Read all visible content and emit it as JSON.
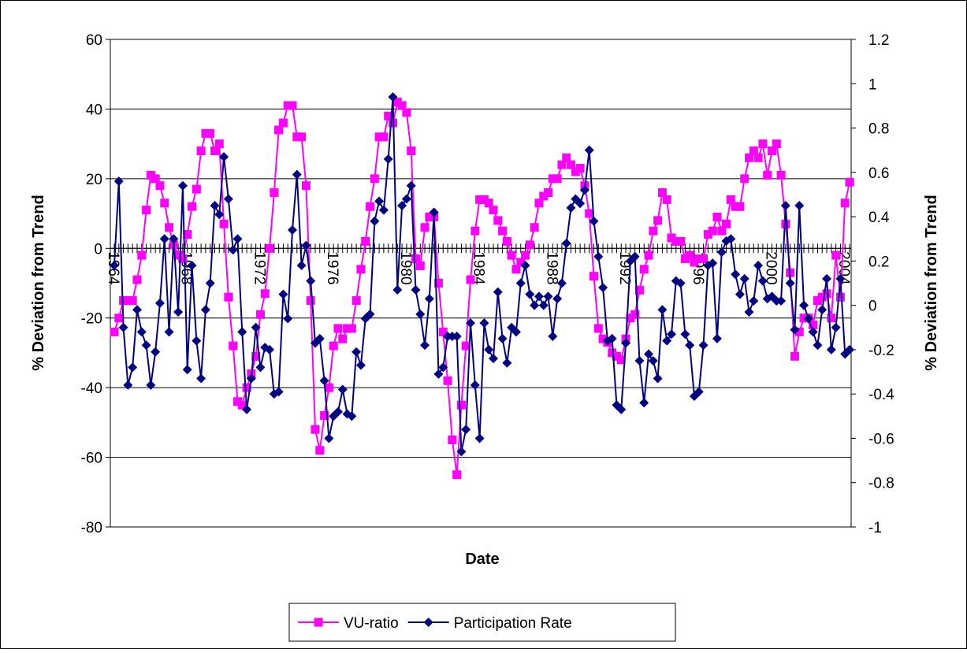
{
  "chart_data": {
    "type": "line",
    "x_label": "Date",
    "y_label": "% Deviation from Trend",
    "y2_label": "% Deviation from Trend",
    "categories": [
      "1964",
      null,
      null,
      null,
      null,
      null,
      null,
      null,
      null,
      null,
      null,
      null,
      null,
      null,
      null,
      null,
      "1968",
      null,
      null,
      null,
      null,
      null,
      null,
      null,
      null,
      null,
      null,
      null,
      null,
      null,
      null,
      null,
      "1972",
      null,
      null,
      null,
      null,
      null,
      null,
      null,
      null,
      null,
      null,
      null,
      null,
      null,
      null,
      null,
      "1976",
      null,
      null,
      null,
      null,
      null,
      null,
      null,
      null,
      null,
      null,
      null,
      null,
      null,
      null,
      null,
      "1980",
      null,
      null,
      null,
      null,
      null,
      null,
      null,
      null,
      null,
      null,
      null,
      null,
      null,
      null,
      null,
      "1984",
      null,
      null,
      null,
      null,
      null,
      null,
      null,
      null,
      null,
      null,
      null,
      null,
      null,
      null,
      null,
      "1988",
      null,
      null,
      null,
      null,
      null,
      null,
      null,
      null,
      null,
      null,
      null,
      null,
      null,
      null,
      null,
      "1992",
      null,
      null,
      null,
      null,
      null,
      null,
      null,
      null,
      null,
      null,
      null,
      null,
      null,
      null,
      null,
      "1996",
      null,
      null,
      null,
      null,
      null,
      null,
      null,
      null,
      null,
      null,
      null,
      null,
      null,
      null,
      null,
      "2000",
      null,
      null,
      null,
      null,
      null,
      null,
      null,
      null,
      null,
      null,
      null,
      null,
      null,
      null,
      null,
      "2004",
      null
    ],
    "series": [
      {
        "name": "VU-ratio",
        "color": "#ff00ff",
        "marker": "square",
        "axis": "y",
        "values": [
          -24,
          -20,
          -15,
          -15,
          -15,
          -9,
          -2,
          11,
          21,
          20,
          18,
          13,
          6,
          1,
          -2,
          -3,
          4,
          12,
          17,
          28,
          33,
          33,
          28,
          30,
          7,
          -14,
          -28,
          -44,
          -45,
          -40,
          -36,
          -31,
          -19,
          -13,
          0,
          16,
          34,
          36,
          41,
          41,
          32,
          32,
          18,
          -15,
          -52,
          -58,
          -48,
          -40,
          -28,
          -23,
          -26,
          -23,
          -23,
          -15,
          -6,
          2,
          12,
          20,
          32,
          32,
          38,
          36,
          42,
          41,
          39,
          28,
          -3,
          -5,
          6,
          9,
          9,
          -10,
          -24,
          -38,
          -55,
          -65,
          -45,
          -28,
          -9,
          5,
          14,
          14,
          13,
          11,
          8,
          5,
          2,
          -2,
          -6,
          -4,
          -2,
          1,
          6,
          13,
          15,
          16,
          20,
          20,
          24,
          26,
          24,
          22,
          23,
          18,
          10,
          -8,
          -23,
          -26,
          -27,
          -30,
          -31,
          -32,
          -26,
          -20,
          -19,
          -12,
          -6,
          -2,
          5,
          8,
          16,
          14,
          3,
          2,
          2,
          -3,
          -2,
          -4,
          -3,
          -3,
          4,
          5,
          9,
          5,
          7,
          14,
          12,
          12,
          20,
          26,
          28,
          26,
          30,
          21,
          28,
          30,
          21,
          7,
          -7,
          -31,
          -24,
          -20,
          -20,
          -22,
          -15,
          -14,
          -13,
          -20,
          -2,
          -14,
          13,
          19
        ]
      },
      {
        "name": "Participation Rate",
        "color": "#000080",
        "marker": "diamond",
        "axis": "y2",
        "values": [
          0.18,
          0.56,
          -0.1,
          -0.36,
          -0.28,
          -0.02,
          -0.12,
          -0.18,
          -0.36,
          -0.21,
          0.01,
          0.3,
          -0.12,
          0.3,
          -0.03,
          0.54,
          -0.29,
          0.18,
          -0.16,
          -0.33,
          -0.02,
          0.1,
          0.45,
          0.41,
          0.67,
          0.48,
          0.25,
          0.3,
          -0.12,
          -0.47,
          -0.33,
          -0.1,
          -0.28,
          -0.19,
          -0.2,
          -0.4,
          -0.39,
          0.05,
          -0.06,
          0.34,
          0.59,
          0.18,
          0.27,
          0.11,
          -0.17,
          -0.15,
          -0.34,
          -0.6,
          -0.5,
          -0.48,
          -0.38,
          -0.49,
          -0.5,
          -0.21,
          -0.27,
          -0.06,
          -0.04,
          0.38,
          0.47,
          0.43,
          0.66,
          0.94,
          0.07,
          0.45,
          0.48,
          0.54,
          0.07,
          -0.04,
          -0.18,
          0.03,
          0.42,
          -0.31,
          -0.28,
          -0.14,
          -0.14,
          -0.14,
          -0.66,
          -0.56,
          -0.08,
          -0.36,
          -0.6,
          -0.08,
          -0.2,
          -0.24,
          0.06,
          -0.15,
          -0.26,
          -0.1,
          -0.12,
          0.1,
          0.18,
          0.05,
          0.0,
          0.04,
          0.0,
          0.04,
          -0.14,
          0.03,
          0.1,
          0.28,
          0.44,
          0.48,
          0.46,
          0.52,
          0.7,
          0.38,
          0.22,
          0.08,
          -0.16,
          -0.15,
          -0.45,
          -0.47,
          -0.17,
          0.2,
          0.22,
          -0.25,
          -0.44,
          -0.22,
          -0.25,
          -0.33,
          -0.02,
          -0.16,
          -0.13,
          0.11,
          0.1,
          -0.13,
          -0.18,
          -0.41,
          -0.39,
          -0.18,
          0.18,
          0.19,
          -0.15,
          0.24,
          0.29,
          0.3,
          0.14,
          0.05,
          0.12,
          -0.03,
          0.02,
          0.18,
          0.11,
          0.03,
          0.04,
          0.02,
          0.02,
          0.45,
          0.1,
          -0.11,
          0.45,
          0.0,
          -0.06,
          -0.12,
          -0.18,
          -0.02,
          0.12,
          -0.2,
          -0.1,
          0.12,
          -0.22,
          -0.2
        ]
      }
    ],
    "ylim": [
      -80,
      60
    ],
    "yticks": [
      -80,
      -60,
      -40,
      -20,
      0,
      20,
      40,
      60
    ],
    "y2lim": [
      -1,
      1.2
    ],
    "y2ticks": [
      -1,
      -0.8,
      -0.6,
      -0.4,
      -0.2,
      0,
      0.2,
      0.4,
      0.6,
      0.8,
      1,
      1.2
    ],
    "grid": true,
    "legend": "bottom"
  }
}
